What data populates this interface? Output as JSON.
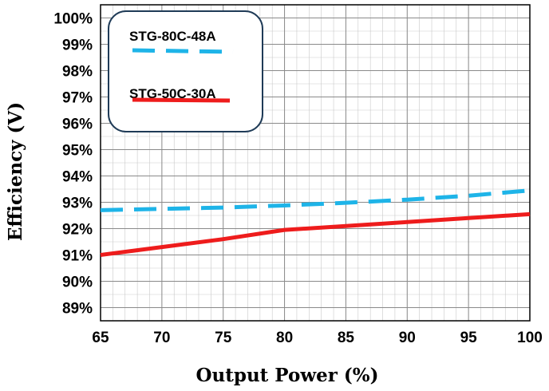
{
  "chart_data": {
    "type": "line",
    "title": "",
    "xlabel": "Output Power (%)",
    "ylabel": "Efficiency (V)",
    "xlim": [
      65,
      100
    ],
    "ylim": [
      88.5,
      100.5
    ],
    "x_ticks": [
      "65",
      "70",
      "75",
      "80",
      "85",
      "90",
      "95",
      "100"
    ],
    "y_ticks": [
      "89%",
      "90%",
      "91%",
      "92%",
      "93%",
      "94%",
      "95%",
      "96%",
      "97%",
      "98%",
      "99%",
      "100%"
    ],
    "grid": true,
    "legend_position": "top-left",
    "series": [
      {
        "name": "STG-80C-48A",
        "color": "#1eb4e8",
        "style": "dashed",
        "x": [
          65,
          70,
          75,
          80,
          85,
          90,
          95,
          100
        ],
        "y": [
          92.7,
          92.75,
          92.8,
          92.88,
          92.98,
          93.1,
          93.25,
          93.45
        ]
      },
      {
        "name": "STG-50C-30A",
        "color": "#ee1c1c",
        "style": "solid",
        "x": [
          65,
          70,
          75,
          80,
          85,
          90,
          95,
          100
        ],
        "y": [
          91.0,
          91.3,
          91.6,
          91.95,
          92.1,
          92.25,
          92.4,
          92.55
        ]
      }
    ]
  }
}
